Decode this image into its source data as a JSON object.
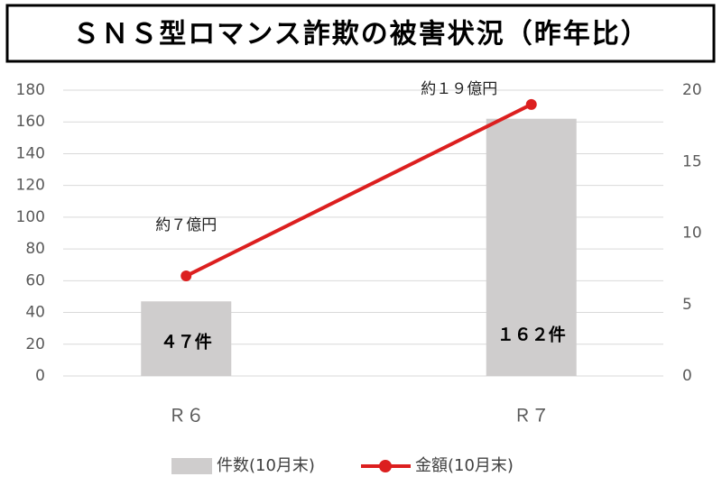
{
  "chart_data": {
    "type": "bar",
    "title": "ＳＮＳ型ロマンス詐欺の被害状況（昨年比）",
    "categories": [
      "Ｒ６",
      "Ｒ７"
    ],
    "series": [
      {
        "name": "件数(10月末)",
        "type": "bar",
        "color": "#cfcdcd",
        "values": [
          47,
          162
        ],
        "value_labels": [
          "４７件",
          "１６２件"
        ]
      },
      {
        "name": "金額(10月末)",
        "type": "line",
        "axis": "y2",
        "color": "#dc1f1f",
        "values": [
          7,
          19
        ],
        "value_labels": [
          "約７億円",
          "約１９億円"
        ]
      }
    ],
    "ylim": [
      0,
      180
    ],
    "yticks": [
      0,
      20,
      40,
      60,
      80,
      100,
      120,
      140,
      160,
      180
    ],
    "y2lim": [
      0,
      20
    ],
    "y2ticks": [
      0,
      5,
      10,
      15,
      20
    ],
    "grid": true,
    "legend": "bottom"
  }
}
